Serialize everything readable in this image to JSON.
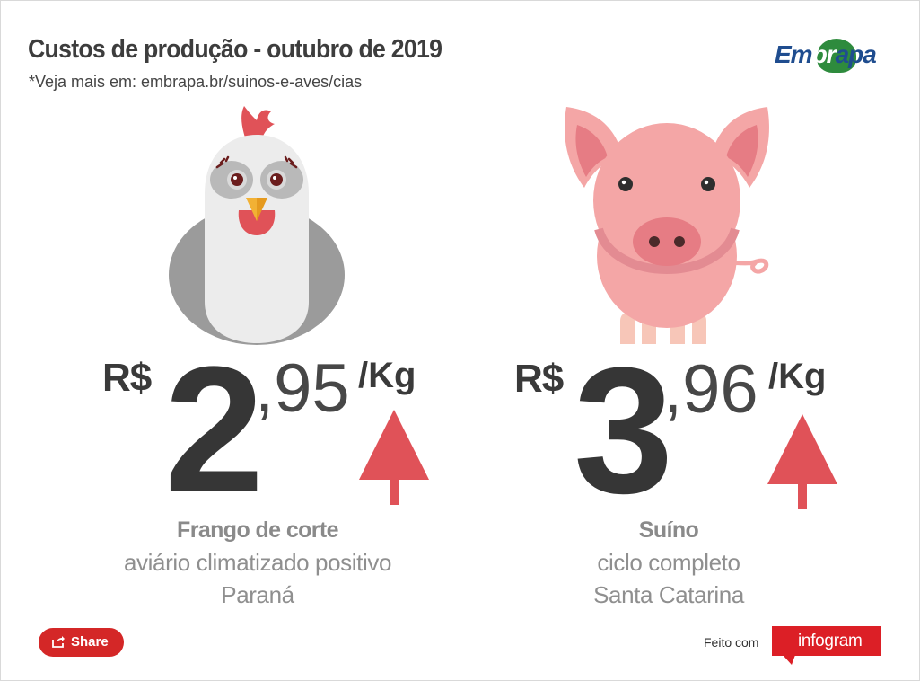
{
  "header": {
    "title": "Custos de produção - outubro de 2019",
    "subtitle": "*Veja mais em: embrapa.br/suinos-e-aves/cias"
  },
  "logo": {
    "text_part1": "Em",
    "text_part2": "br",
    "text_part3": "apa",
    "brand_colors": {
      "blue": "#1f4d8f",
      "green": "#2e8b3d"
    }
  },
  "items": [
    {
      "animal": "chicken-icon",
      "currency": "R$",
      "integer": "2",
      "decimal": ",95",
      "unit": "/Kg",
      "trend": "up",
      "trend_color": "#e05258",
      "name": "Frango de corte",
      "system": "aviário climatizado positivo",
      "state": "Paraná"
    },
    {
      "animal": "pig-icon",
      "currency": "R$",
      "integer": "3",
      "decimal": ",96",
      "unit": "/Kg",
      "trend": "up",
      "trend_color": "#e05258",
      "name": "Suíno",
      "system": "ciclo completo",
      "state": "Santa Catarina"
    }
  ],
  "footer": {
    "share_label": "Share",
    "made_with": "Feito com",
    "infogram_label": "infogram",
    "accent": "#d42727"
  }
}
